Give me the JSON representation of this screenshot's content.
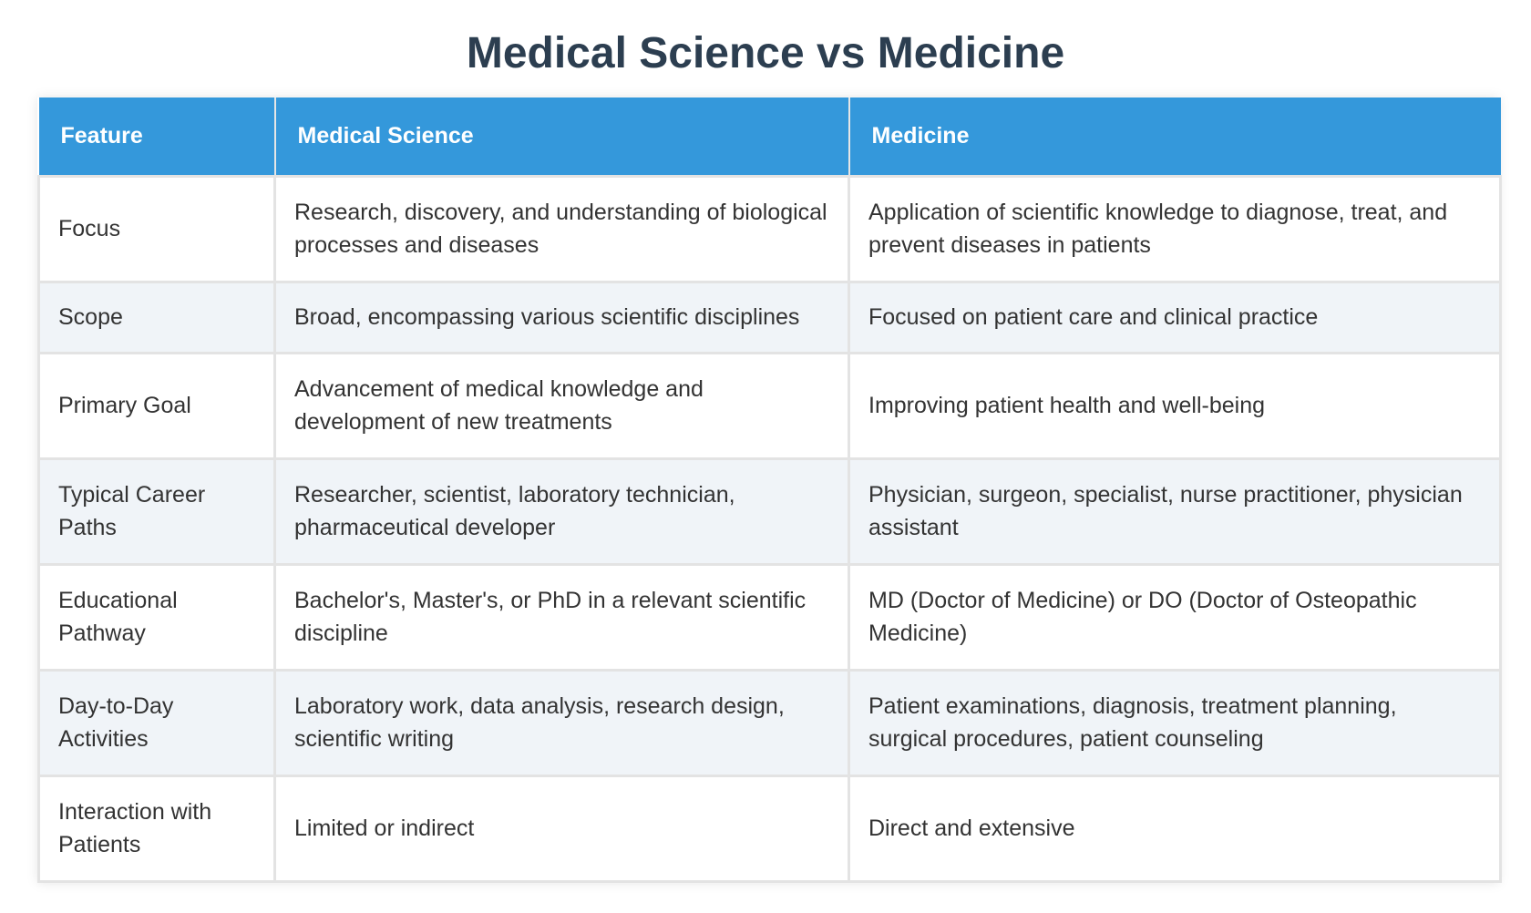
{
  "title": "Medical Science vs Medicine",
  "table": {
    "headers": [
      "Feature",
      "Medical Science",
      "Medicine"
    ],
    "rows": [
      {
        "feature": "Focus",
        "medical_science": "Research, discovery, and understanding of biological processes and diseases",
        "medicine": "Application of scientific knowledge to diagnose, treat, and prevent diseases in patients"
      },
      {
        "feature": "Scope",
        "medical_science": "Broad, encompassing various scientific disciplines",
        "medicine": "Focused on patient care and clinical practice"
      },
      {
        "feature": "Primary Goal",
        "medical_science": "Advancement of medical knowledge and development of new treatments",
        "medicine": "Improving patient health and well-being"
      },
      {
        "feature": "Typical Career Paths",
        "medical_science": "Researcher, scientist, laboratory technician, pharmaceutical developer",
        "medicine": "Physician, surgeon, specialist, nurse practitioner, physician assistant"
      },
      {
        "feature": "Educational Pathway",
        "medical_science": "Bachelor's, Master's, or PhD in a relevant scientific discipline",
        "medicine": "MD (Doctor of Medicine) or DO (Doctor of Osteopathic Medicine)"
      },
      {
        "feature": "Day-to-Day Activities",
        "medical_science": "Laboratory work, data analysis, research design, scientific writing",
        "medicine": "Patient examinations, diagnosis, treatment planning, surgical procedures, patient counseling"
      },
      {
        "feature": "Interaction with Patients",
        "medical_science": "Limited or indirect",
        "medicine": "Direct and extensive"
      }
    ]
  },
  "colors": {
    "title": "#2c3e50",
    "header_bg": "#3498db",
    "header_text": "#ffffff",
    "row_alt_bg": "#f0f4f8",
    "border": "#e3e3e3"
  }
}
